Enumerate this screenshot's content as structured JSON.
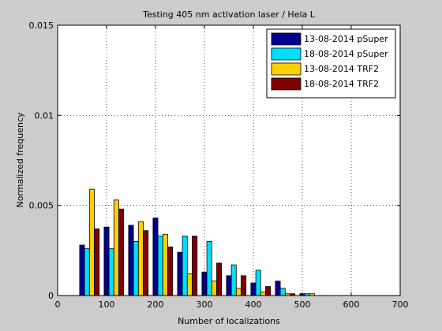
{
  "chart_data": {
    "type": "bar",
    "title": "Testing 405 nm activation laser / Hela L",
    "xlabel": "Number of localizations",
    "ylabel": "Normalized frequency",
    "xlim": [
      0,
      700
    ],
    "ylim": [
      0,
      0.015
    ],
    "xticks": [
      "0",
      "100",
      "200",
      "300",
      "400",
      "500",
      "600",
      "700"
    ],
    "yticks": [
      "0",
      "0.005",
      "0.01",
      "0.015"
    ],
    "grid": true,
    "legend": "top-right",
    "bin_width": 50,
    "bin_centers": [
      65,
      115,
      165,
      215,
      265,
      315,
      365,
      415,
      465,
      515
    ],
    "series": [
      {
        "name": "13-08-2014 pSuper",
        "color": "#00008f",
        "values": [
          0.0028,
          0.0038,
          0.0039,
          0.0043,
          0.0024,
          0.0013,
          0.0011,
          0.0007,
          0.0008,
          0.0001
        ]
      },
      {
        "name": "18-08-2014 pSuper",
        "color": "#00dfff",
        "values": [
          0.0026,
          0.0026,
          0.003,
          0.0033,
          0.0033,
          0.003,
          0.0017,
          0.0014,
          0.0004,
          0.0001
        ]
      },
      {
        "name": "13-08-2014 TRF2",
        "color": "#ffcf00",
        "values": [
          0.0059,
          0.0053,
          0.0041,
          0.0034,
          0.0012,
          0.0008,
          0.0004,
          0.0002,
          0.0001,
          0.0001
        ]
      },
      {
        "name": "18-08-2014 TRF2",
        "color": "#800000",
        "values": [
          0.0037,
          0.0048,
          0.0036,
          0.0027,
          0.0033,
          0.0018,
          0.0011,
          0.0005,
          0.0001,
          0.0
        ]
      }
    ]
  }
}
